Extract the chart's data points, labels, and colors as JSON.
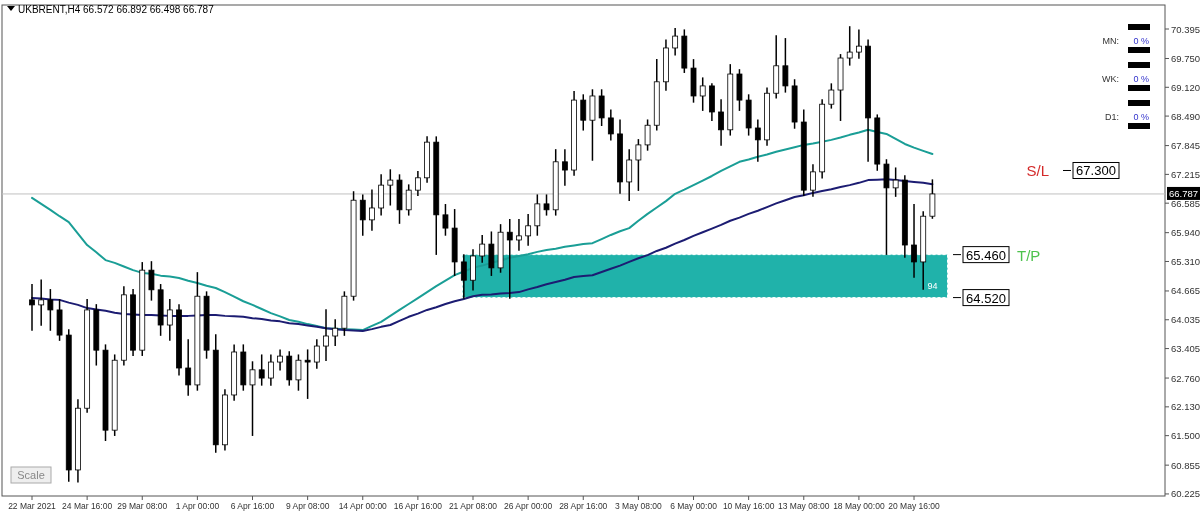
{
  "chart_data": {
    "type": "candlestick",
    "title": "UKBRENT,H4  66.572 66.892 66.498 66.787",
    "categories": [
      "22 Mar 2021",
      null,
      null,
      null,
      null,
      null,
      "24 Mar 16:00",
      null,
      null,
      null,
      null,
      null,
      "29 Mar 08:00",
      null,
      null,
      null,
      null,
      null,
      "1 Apr 00:00",
      null,
      null,
      null,
      null,
      null,
      "6 Apr 16:00",
      null,
      null,
      null,
      null,
      null,
      "9 Apr 08:00",
      null,
      null,
      null,
      null,
      null,
      "14 Apr 00:00",
      null,
      null,
      null,
      null,
      null,
      "16 Apr 16:00",
      null,
      null,
      null,
      null,
      null,
      "21 Apr 08:00",
      null,
      null,
      null,
      null,
      null,
      "26 Apr 00:00",
      null,
      null,
      null,
      null,
      null,
      "28 Apr 16:00",
      null,
      null,
      null,
      null,
      null,
      "3 May 08:00",
      null,
      null,
      null,
      null,
      null,
      "6 May 00:00",
      null,
      null,
      null,
      null,
      null,
      "10 May 16:00",
      null,
      null,
      null,
      null,
      null,
      "13 May 08:00",
      null,
      null,
      null,
      null,
      null,
      "18 May 00:00",
      null,
      null,
      null,
      null,
      null,
      "20 May 16:00",
      null,
      null
    ],
    "ohlc": [
      [
        64.47,
        64.8,
        63.81,
        64.36
      ],
      [
        64.36,
        64.9,
        63.92,
        64.47
      ],
      [
        64.47,
        64.69,
        63.81,
        64.25
      ],
      [
        64.25,
        64.47,
        63.59,
        63.7
      ],
      [
        63.7,
        63.81,
        60.51,
        60.75
      ],
      [
        60.75,
        62.28,
        60.49,
        62.1
      ],
      [
        62.1,
        64.47,
        62.02,
        64.25
      ],
      [
        64.25,
        64.36,
        63.05,
        63.37
      ],
      [
        63.37,
        63.48,
        61.4,
        61.62
      ],
      [
        61.62,
        63.26,
        61.51,
        63.15
      ],
      [
        63.15,
        64.75,
        63.05,
        64.58
      ],
      [
        64.58,
        64.69,
        63.26,
        63.37
      ],
      [
        63.37,
        65.28,
        63.26,
        65.12
      ],
      [
        65.12,
        65.3,
        64.47,
        64.69
      ],
      [
        64.69,
        64.8,
        63.7,
        63.92
      ],
      [
        63.92,
        64.47,
        63.59,
        64.25
      ],
      [
        64.25,
        64.36,
        62.83,
        62.98
      ],
      [
        62.98,
        63.59,
        62.39,
        62.61
      ],
      [
        62.61,
        65.06,
        62.5,
        64.55
      ],
      [
        64.55,
        64.64,
        63.2,
        63.37
      ],
      [
        63.37,
        63.7,
        61.14,
        61.3
      ],
      [
        61.3,
        62.5,
        61.19,
        62.39
      ],
      [
        62.39,
        63.48,
        62.28,
        63.33
      ],
      [
        63.33,
        63.48,
        62.5,
        62.61
      ],
      [
        62.61,
        63.11,
        61.51,
        62.94
      ],
      [
        62.94,
        63.26,
        62.61,
        62.76
      ],
      [
        62.76,
        63.26,
        62.61,
        63.11
      ],
      [
        63.11,
        63.37,
        62.94,
        63.24
      ],
      [
        63.24,
        63.33,
        62.61,
        62.72
      ],
      [
        62.72,
        63.26,
        62.5,
        63.15
      ],
      [
        63.15,
        63.37,
        62.32,
        63.11
      ],
      [
        63.11,
        63.59,
        62.98,
        63.46
      ],
      [
        63.46,
        64.25,
        63.15,
        63.68
      ],
      [
        63.68,
        64.03,
        63.48,
        63.85
      ],
      [
        63.85,
        64.64,
        63.7,
        64.55
      ],
      [
        64.55,
        66.83,
        64.47,
        66.65
      ],
      [
        66.65,
        66.76,
        65.89,
        66.22
      ],
      [
        66.22,
        66.87,
        66.0,
        66.48
      ],
      [
        66.48,
        67.2,
        66.33,
        66.98
      ],
      [
        66.98,
        67.31,
        66.55,
        67.09
      ],
      [
        67.09,
        67.2,
        66.15,
        66.44
      ],
      [
        66.44,
        66.98,
        66.33,
        66.87
      ],
      [
        66.87,
        67.27,
        66.76,
        67.14
      ],
      [
        67.14,
        68.03,
        67.05,
        67.92
      ],
      [
        67.92,
        68.03,
        65.47,
        66.33
      ],
      [
        66.33,
        66.55,
        65.89,
        66.04
      ],
      [
        66.04,
        66.44,
        65.01,
        65.3
      ],
      [
        65.3,
        65.45,
        64.51,
        64.9
      ],
      [
        64.9,
        65.56,
        64.69,
        65.43
      ],
      [
        65.43,
        65.87,
        65.3,
        65.69
      ],
      [
        65.69,
        65.95,
        65.01,
        65.17
      ],
      [
        65.17,
        66.11,
        65.08,
        65.95
      ],
      [
        65.95,
        66.22,
        64.51,
        65.78
      ],
      [
        65.78,
        66.22,
        65.56,
        65.87
      ],
      [
        65.87,
        66.33,
        65.67,
        66.09
      ],
      [
        66.09,
        66.76,
        65.89,
        66.57
      ],
      [
        66.57,
        66.76,
        66.33,
        66.44
      ],
      [
        66.44,
        67.75,
        66.33,
        67.49
      ],
      [
        67.49,
        67.75,
        66.98,
        67.31
      ],
      [
        67.31,
        69.02,
        67.2,
        68.84
      ],
      [
        68.84,
        68.95,
        68.19,
        68.4
      ],
      [
        68.4,
        69.06,
        67.53,
        68.93
      ],
      [
        68.93,
        69.06,
        68.29,
        68.45
      ],
      [
        68.45,
        68.62,
        67.97,
        68.1
      ],
      [
        68.1,
        68.4,
        66.81,
        67.05
      ],
      [
        67.05,
        67.75,
        66.65,
        67.53
      ],
      [
        67.53,
        67.97,
        66.87,
        67.86
      ],
      [
        67.86,
        68.4,
        67.75,
        68.29
      ],
      [
        68.29,
        69.72,
        68.19,
        69.24
      ],
      [
        69.24,
        70.15,
        69.06,
        69.98
      ],
      [
        69.98,
        70.4,
        69.83,
        70.24
      ],
      [
        70.24,
        70.37,
        69.45,
        69.54
      ],
      [
        69.54,
        69.72,
        68.8,
        68.93
      ],
      [
        68.93,
        69.32,
        68.62,
        69.15
      ],
      [
        69.15,
        69.19,
        68.4,
        68.58
      ],
      [
        68.58,
        68.84,
        67.86,
        68.19
      ],
      [
        68.19,
        69.61,
        68.08,
        69.41
      ],
      [
        69.41,
        69.5,
        68.62,
        68.84
      ],
      [
        68.84,
        68.95,
        68.08,
        68.23
      ],
      [
        68.23,
        68.4,
        67.51,
        67.97
      ],
      [
        67.97,
        69.1,
        67.86,
        68.99
      ],
      [
        68.99,
        70.24,
        68.89,
        69.59
      ],
      [
        69.59,
        70.18,
        69.02,
        69.15
      ],
      [
        69.15,
        69.28,
        68.23,
        68.36
      ],
      [
        68.36,
        68.62,
        66.76,
        66.87
      ],
      [
        66.87,
        67.42,
        66.74,
        67.27
      ],
      [
        67.27,
        68.84,
        67.14,
        68.75
      ],
      [
        68.75,
        69.19,
        68.67,
        69.06
      ],
      [
        69.06,
        69.83,
        68.4,
        69.76
      ],
      [
        69.76,
        70.44,
        69.61,
        69.89
      ],
      [
        69.89,
        70.37,
        69.76,
        70.02
      ],
      [
        70.02,
        70.15,
        67.51,
        68.45
      ],
      [
        68.45,
        68.51,
        67.31,
        67.44
      ],
      [
        67.44,
        67.53,
        65.47,
        66.92
      ],
      [
        66.92,
        67.35,
        66.74,
        67.09
      ],
      [
        67.09,
        67.18,
        65.41,
        65.67
      ],
      [
        65.67,
        66.55,
        64.97,
        65.3
      ],
      [
        65.3,
        66.39,
        64.71,
        66.3
      ],
      [
        66.3,
        67.09,
        66.26,
        66.787
      ]
    ],
    "series": [
      {
        "type": "line",
        "color": "#1a9e96",
        "values": [
          66.7,
          66.57,
          66.44,
          66.3,
          66.17,
          65.92,
          65.67,
          65.51,
          65.34,
          65.28,
          65.2,
          65.12,
          65.06,
          65.04,
          65.0,
          64.98,
          64.95,
          64.89,
          64.84,
          64.78,
          64.73,
          64.64,
          64.54,
          64.44,
          64.36,
          64.27,
          64.18,
          64.11,
          64.03,
          63.99,
          63.94,
          63.9,
          63.85,
          63.84,
          63.83,
          63.82,
          63.81,
          63.9,
          63.99,
          64.12,
          64.25,
          64.38,
          64.51,
          64.64,
          64.77,
          64.89,
          65.01,
          65.09,
          65.17,
          65.22,
          65.28,
          65.33,
          65.39,
          65.43,
          65.47,
          65.52,
          65.56,
          65.59,
          65.63,
          65.66,
          65.69,
          65.71,
          65.8,
          65.89,
          65.97,
          66.04,
          66.2,
          66.35,
          66.49,
          66.63,
          66.79,
          66.88,
          66.98,
          67.08,
          67.18,
          67.29,
          67.39,
          67.49,
          67.54,
          67.6,
          67.65,
          67.71,
          67.76,
          67.81,
          67.86,
          67.89,
          67.93,
          67.97,
          68.02,
          68.08,
          68.13,
          68.19,
          68.14,
          68.1,
          67.99,
          67.88,
          67.8,
          67.73,
          67.66
        ]
      },
      {
        "type": "line",
        "color": "#1c1c72",
        "values": [
          64.51,
          64.5,
          64.48,
          64.47,
          64.41,
          64.36,
          64.29,
          64.26,
          64.23,
          64.19,
          64.16,
          64.15,
          64.14,
          64.14,
          64.13,
          64.12,
          64.12,
          64.12,
          64.13,
          64.14,
          64.14,
          64.12,
          64.11,
          64.1,
          64.07,
          64.05,
          64.02,
          64.0,
          63.96,
          63.94,
          63.91,
          63.88,
          63.85,
          63.83,
          63.81,
          63.8,
          63.79,
          63.83,
          63.88,
          63.92,
          64.01,
          64.1,
          64.17,
          64.25,
          64.31,
          64.38,
          64.44,
          64.49,
          64.55,
          64.58,
          64.59,
          64.61,
          64.62,
          64.64,
          64.7,
          64.75,
          64.81,
          64.86,
          64.91,
          64.97,
          64.99,
          65.01,
          65.08,
          65.15,
          65.22,
          65.3,
          65.38,
          65.45,
          65.54,
          65.61,
          65.7,
          65.78,
          65.87,
          65.95,
          66.03,
          66.11,
          66.2,
          66.27,
          66.35,
          66.42,
          66.5,
          66.58,
          66.65,
          66.72,
          66.76,
          66.81,
          66.85,
          66.89,
          66.94,
          66.98,
          67.03,
          67.09,
          67.1,
          67.11,
          67.09,
          67.07,
          67.05,
          67.03,
          67.0
        ]
      }
    ],
    "ylim": [
      60.18,
      70.92
    ],
    "yticks": [
      {
        "value": 70.395,
        "label": "70.395"
      },
      {
        "value": 69.75,
        "label": "69.750"
      },
      {
        "value": 69.12,
        "label": "69.120"
      },
      {
        "value": 68.49,
        "label": "68.490"
      },
      {
        "value": 67.845,
        "label": "67.845"
      },
      {
        "value": 67.215,
        "label": "67.215"
      },
      {
        "value": 66.585,
        "label": "66.585"
      },
      {
        "value": 65.94,
        "label": "65.940"
      },
      {
        "value": 65.31,
        "label": "65.310"
      },
      {
        "value": 64.665,
        "label": "64.665"
      },
      {
        "value": 64.035,
        "label": "64.035"
      },
      {
        "value": 63.405,
        "label": "63.405"
      },
      {
        "value": 62.76,
        "label": "62.760"
      },
      {
        "value": 62.13,
        "label": "62.130"
      },
      {
        "value": 61.5,
        "label": "61.500"
      },
      {
        "value": 60.855,
        "label": "60.855"
      },
      {
        "value": 60.225,
        "label": "60.225"
      }
    ],
    "ref_lines": [
      {
        "axis": "y",
        "value": 66.787,
        "label": "66.787",
        "color": "#c0c0c0"
      },
      {
        "axis": "y",
        "value": 67.3,
        "label": "67.300"
      },
      {
        "axis": "y",
        "value": 65.46,
        "label": "65.460"
      },
      {
        "axis": "y",
        "value": 64.52,
        "label": "64.520"
      }
    ],
    "bands": [
      {
        "axis": "y",
        "from": 64.52,
        "to": 65.46,
        "label": "94",
        "color": "#20b2aa"
      }
    ],
    "annotations": [
      "S/L",
      "T/P",
      "Scale",
      "MN:",
      "0 %",
      "WK:",
      "0 %",
      "D1:",
      "0 %"
    ]
  }
}
